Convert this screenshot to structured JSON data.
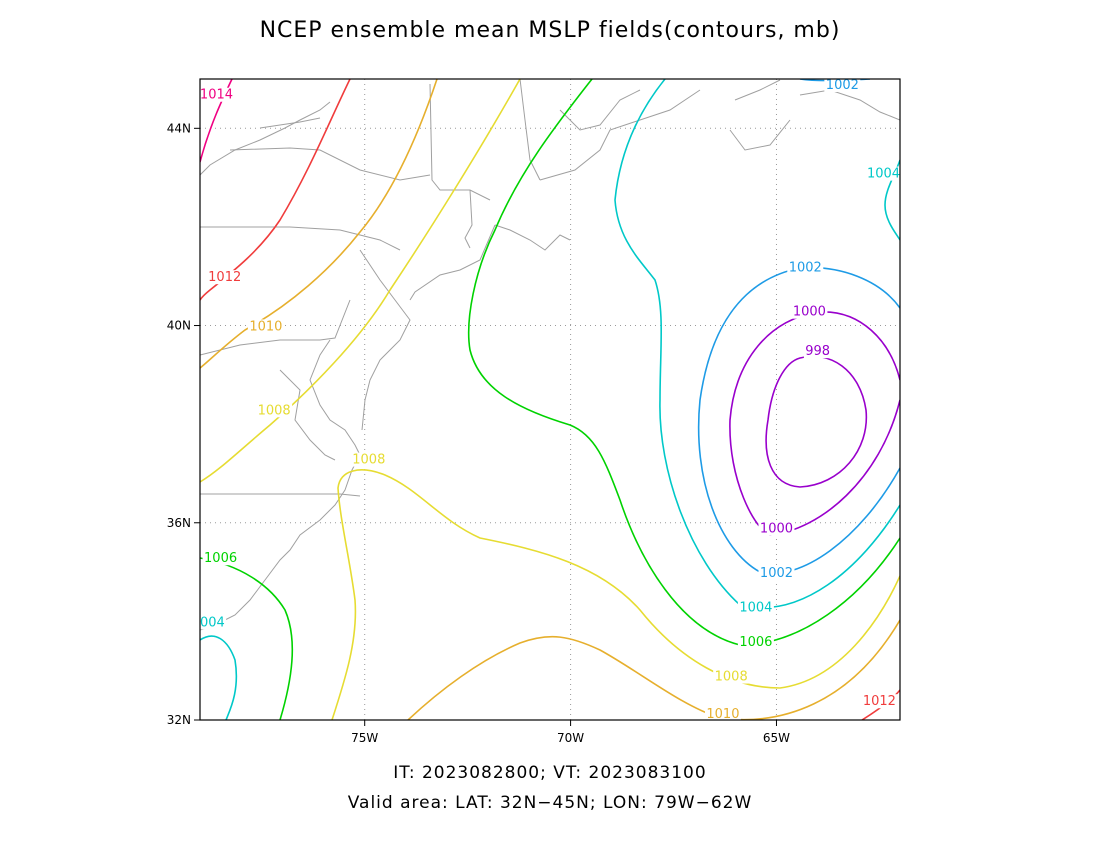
{
  "title": "NCEP ensemble mean MSLP fields(contours, mb)",
  "caption_line1": "IT: 2023082800; VT: 2023083100",
  "caption_line2": "Valid area: LAT: 32N−45N; LON: 79W−62W",
  "map": {
    "lon_range": [
      -79,
      -62
    ],
    "lat_range": [
      32,
      45
    ],
    "grid": true,
    "lon_ticks": [
      {
        "value": -75,
        "label": "75W"
      },
      {
        "value": -70,
        "label": "70W"
      },
      {
        "value": -65,
        "label": "65W"
      }
    ],
    "lat_ticks": [
      {
        "value": 44,
        "label": "44N"
      },
      {
        "value": 40,
        "label": "40N"
      },
      {
        "value": 36,
        "label": "36N"
      },
      {
        "value": 32,
        "label": "32N"
      }
    ]
  },
  "contour_colors": {
    "998": "#9900cc",
    "1000": "#9900cc",
    "1002": "#1e9be6",
    "1004": "#00c8c8",
    "1006": "#00d200",
    "1008": "#e6dc32",
    "1010": "#e6af2d",
    "1012": "#f03c3c",
    "1014": "#f00082"
  },
  "contour_labels": [
    {
      "text": "1014",
      "lon": -78.6,
      "lat": 44.6,
      "level": "1014"
    },
    {
      "text": "1012",
      "lon": -78.4,
      "lat": 40.9,
      "level": "1012"
    },
    {
      "text": "1010",
      "lon": -77.4,
      "lat": 39.9,
      "level": "1010"
    },
    {
      "text": "1008",
      "lon": -77.2,
      "lat": 38.2,
      "level": "1008"
    },
    {
      "text": "1008",
      "lon": -74.9,
      "lat": 37.2,
      "level": "1008"
    },
    {
      "text": "1006",
      "lon": -78.5,
      "lat": 35.2,
      "level": "1006"
    },
    {
      "text": "004",
      "lon": -78.7,
      "lat": 33.9,
      "level": "1004"
    },
    {
      "text": "1002",
      "lon": -63.4,
      "lat": 44.9,
      "level": "1002"
    },
    {
      "text": "1004",
      "lon": -62.4,
      "lat": 43.0,
      "level": "1004"
    },
    {
      "text": "1002",
      "lon": -64.3,
      "lat": 41.1,
      "level": "1002"
    },
    {
      "text": "1000",
      "lon": -64.2,
      "lat": 40.2,
      "level": "1000"
    },
    {
      "text": "998",
      "lon": -64.0,
      "lat": 39.4,
      "level": "998"
    },
    {
      "text": "1000",
      "lon": -65.0,
      "lat": 35.8,
      "level": "1000"
    },
    {
      "text": "1002",
      "lon": -65.0,
      "lat": 34.9,
      "level": "1002"
    },
    {
      "text": "1004",
      "lon": -65.5,
      "lat": 34.2,
      "level": "1004"
    },
    {
      "text": "1006",
      "lon": -65.5,
      "lat": 33.5,
      "level": "1006"
    },
    {
      "text": "1008",
      "lon": -66.1,
      "lat": 32.8,
      "level": "1008"
    },
    {
      "text": "1010",
      "lon": -66.3,
      "lat": 32.0,
      "level": "1010"
    },
    {
      "text": "1012",
      "lon": -62.5,
      "lat": 32.3,
      "level": "1012"
    }
  ]
}
